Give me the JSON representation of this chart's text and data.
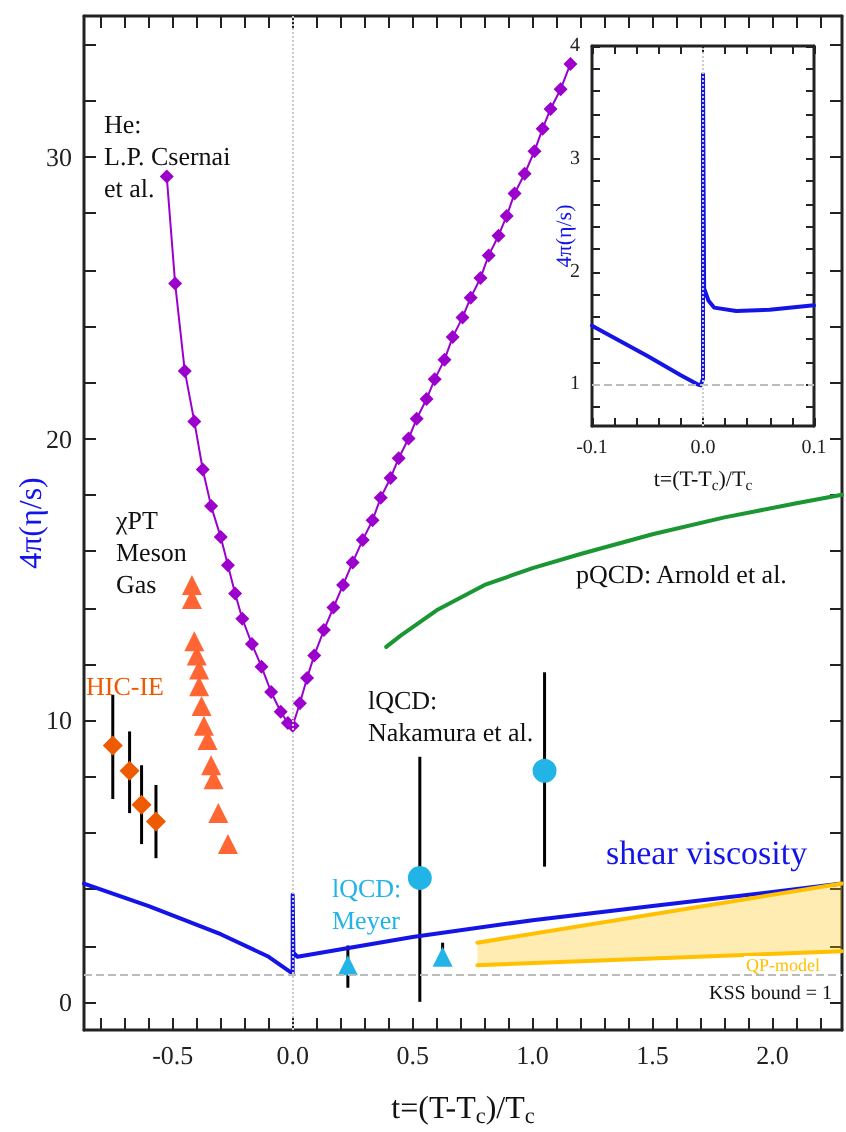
{
  "chart_data": [
    {
      "type": "line",
      "xlabel": "t=(T-T$_{c}$)/T$_{c}$",
      "ylabel": "4π(η/s)",
      "xlim": [
        -0.87,
        2.29
      ],
      "ylim": [
        -1,
        35
      ],
      "xticks": [
        {
          "value": -0.8,
          "label": null
        },
        {
          "value": -0.7,
          "label": null
        },
        {
          "value": -0.6,
          "label": null
        },
        -0.5,
        {
          "value": -0.4,
          "label": null
        },
        {
          "value": -0.3,
          "label": null
        },
        {
          "value": -0.2,
          "label": null
        },
        {
          "value": -0.1,
          "label": null
        },
        {
          "value": 0,
          "label": "0.0"
        },
        {
          "value": 0.1,
          "label": null
        },
        {
          "value": 0.2,
          "label": null
        },
        {
          "value": 0.3,
          "label": null
        },
        {
          "value": 0.4,
          "label": null
        },
        0.5,
        {
          "value": 0.6,
          "label": null
        },
        {
          "value": 0.7,
          "label": null
        },
        {
          "value": 0.8,
          "label": null
        },
        {
          "value": 0.9,
          "label": null
        },
        {
          "value": 1,
          "label": "1.0"
        },
        {
          "value": 1.1,
          "label": null
        },
        {
          "value": 1.2,
          "label": null
        },
        {
          "value": 1.3,
          "label": null
        },
        {
          "value": 1.4,
          "label": null
        },
        1.5,
        {
          "value": 1.6,
          "label": null
        },
        {
          "value": 1.7,
          "label": null
        },
        {
          "value": 1.8,
          "label": null
        },
        {
          "value": 1.9,
          "label": null
        },
        {
          "value": 2,
          "label": "2.0"
        },
        {
          "value": 2.1,
          "label": null
        },
        {
          "value": 2.2,
          "label": null
        }
      ],
      "yticks": [
        0,
        {
          "value": 2,
          "label": null
        },
        {
          "value": 4,
          "label": null
        },
        {
          "value": 6,
          "label": null
        },
        {
          "value": 8,
          "label": null
        },
        10,
        {
          "value": 12,
          "label": null
        },
        {
          "value": 14,
          "label": null
        },
        {
          "value": 16,
          "label": null
        },
        {
          "value": 18,
          "label": null
        },
        20,
        {
          "value": 22,
          "label": null
        },
        {
          "value": 24,
          "label": null
        },
        {
          "value": 26,
          "label": null
        },
        {
          "value": 28,
          "label": null
        },
        30,
        {
          "value": 32,
          "label": null
        },
        {
          "value": 34,
          "label": null
        }
      ],
      "ref_lines": [
        {
          "axis": "y",
          "value": 1,
          "label": "KSS bound = 1",
          "color": "#bbbbbb",
          "line_style": "dashed"
        },
        {
          "axis": "x",
          "value": 0,
          "label": null,
          "color": "#cccccc",
          "line_style": "dotted"
        }
      ],
      "series": [
        {
          "name": "He:\nL.P. Csernai\net al.",
          "marker": "diamond",
          "color": "#9b00cc",
          "x": [
            -0.525,
            -0.49,
            -0.45,
            -0.41,
            -0.375,
            -0.34,
            -0.3,
            -0.27,
            -0.24,
            -0.21,
            -0.17,
            -0.13,
            -0.09,
            -0.05,
            -0.02,
            0,
            0.03,
            0.06,
            0.09,
            0.13,
            0.17,
            0.21,
            0.25,
            0.292,
            0.333,
            0.367,
            0.408,
            0.442,
            0.483,
            0.517,
            0.558,
            0.592,
            0.633,
            0.667,
            0.708,
            0.742,
            0.783,
            0.817,
            0.858,
            0.892,
            0.925,
            0.967,
            1.008,
            1.042,
            1.075,
            1.117,
            1.158
          ],
          "values": [
            29.3,
            25.5,
            22.4,
            20.6,
            18.9,
            17.6,
            16.5,
            15.5,
            14.5,
            13.6,
            12.7,
            11.9,
            11,
            10.3,
            9.9,
            9.8,
            10.6,
            11.5,
            12.3,
            13.2,
            14,
            14.8,
            15.6,
            16.4,
            17.1,
            17.9,
            18.6,
            19.3,
            20,
            20.7,
            21.4,
            22.1,
            22.8,
            23.6,
            24.3,
            25,
            25.7,
            26.5,
            27.2,
            27.9,
            28.7,
            29.4,
            30.2,
            31,
            31.7,
            32.4,
            33.3
          ]
        },
        {
          "name": "χPT\nMeson\nGas",
          "type": "scatter",
          "marker": "triangle",
          "color": "#ff6633",
          "x": [
            -0.42,
            -0.42,
            -0.41,
            -0.4,
            -0.39,
            -0.39,
            -0.38,
            -0.37,
            -0.355,
            -0.34,
            -0.33,
            -0.31,
            -0.27
          ],
          "values": [
            14.8,
            14.3,
            12.8,
            12.3,
            11.8,
            11.2,
            10.5,
            9.8,
            9.3,
            8.4,
            7.9,
            6.7,
            5.6
          ]
        },
        {
          "name": "HIC-IE",
          "type": "scatter",
          "marker": "diamond",
          "color": "#ee5a00",
          "x": [
            -0.75,
            -0.68,
            -0.63,
            -0.57
          ],
          "values": [
            9.1,
            8.2,
            7,
            6.4
          ],
          "errors": [
            [
              7.2,
              10.9
            ],
            [
              6.7,
              9.6
            ],
            [
              5.6,
              8.4
            ],
            [
              5.1,
              7.7
            ]
          ]
        },
        {
          "name": "pQCD: Arnold et al.",
          "marker": "none",
          "color": "#1a9632",
          "x": [
            0.39,
            0.45,
            0.6,
            0.8,
            1,
            1.2,
            1.5,
            1.8,
            2.1,
            2.29
          ],
          "values": [
            12.6,
            13,
            13.9,
            14.8,
            15.4,
            15.9,
            16.6,
            17.2,
            17.7,
            18
          ]
        },
        {
          "name": "shear viscosity",
          "marker": "none",
          "color": "#1414e6",
          "x": [
            -0.87,
            -0.6,
            -0.3,
            -0.1,
            0,
            0,
            0.003,
            0.02,
            0.5,
            1,
            1.5,
            2,
            2.29
          ],
          "values": [
            4.2,
            3.4,
            2.4,
            1.6,
            1,
            3.8,
            1.75,
            1.6,
            2.3,
            2.9,
            3.4,
            3.9,
            4.2
          ]
        },
        {
          "name": "QP-model",
          "marker": "none",
          "color": "#ffc000",
          "x": [
            0.77,
            2.29
          ],
          "values": [
            2.1,
            4.2
          ],
          "lower": [
            1.3,
            1.8
          ],
          "upper": [
            2.1,
            4.2
          ]
        },
        {
          "marker": "none",
          "color": "#ffc000",
          "x": [
            0.77,
            2.29
          ],
          "values": [
            1.3,
            1.8
          ]
        },
        {
          "name": "lQCD:\nNakamura et al.",
          "type": "scatter",
          "marker": "circle",
          "color": "#22b4e6",
          "x": [
            0.53,
            1.05
          ],
          "values": [
            4.4,
            8.2
          ],
          "errors": [
            [
              0,
              8.7
            ],
            [
              4.8,
              11.7
            ]
          ]
        },
        {
          "name": "lQCD:\nMeyer",
          "type": "scatter",
          "marker": "triangle",
          "color": "#22b4e6",
          "x": [
            0.23,
            0.625
          ],
          "values": [
            1.3,
            1.6
          ],
          "errors": [
            [
              0.5,
              2
            ],
            [
              1.3,
              2.1
            ]
          ]
        }
      ]
    },
    {
      "type": "line",
      "xlabel": "t=(T-T$_{c}$)/T$_{c}$",
      "ylabel": "4π(η/s)",
      "xlim": [
        -0.1,
        0.1
      ],
      "ylim": [
        0.63,
        4
      ],
      "xticks": [
        -0.1,
        {
          "value": -0.08,
          "label": null
        },
        {
          "value": -0.06,
          "label": null
        },
        {
          "value": -0.04,
          "label": null
        },
        {
          "value": -0.02,
          "label": null
        },
        {
          "value": 0,
          "label": "0.0"
        },
        {
          "value": 0.02,
          "label": null
        },
        {
          "value": 0.04,
          "label": null
        },
        {
          "value": 0.06,
          "label": null
        },
        {
          "value": 0.08,
          "label": null
        },
        0.1
      ],
      "yticks": [
        {
          "value": 0.8,
          "label": null
        },
        1,
        {
          "value": 1.2,
          "label": null
        },
        {
          "value": 1.4,
          "label": null
        },
        {
          "value": 1.6,
          "label": null
        },
        {
          "value": 1.8,
          "label": null
        },
        2,
        {
          "value": 2.2,
          "label": null
        },
        {
          "value": 2.4,
          "label": null
        },
        {
          "value": 2.6,
          "label": null
        },
        {
          "value": 2.8,
          "label": null
        },
        3,
        {
          "value": 3.2,
          "label": null
        },
        {
          "value": 3.4,
          "label": null
        },
        {
          "value": 3.6,
          "label": null
        },
        {
          "value": 3.8,
          "label": null
        },
        4
      ],
      "ref_lines": [
        {
          "axis": "y",
          "value": 1,
          "label": null,
          "color": "#bbbbbb",
          "line_style": "dashed"
        },
        {
          "axis": "x",
          "value": 0,
          "label": null,
          "color": "#cccccc",
          "line_style": "dotted"
        }
      ],
      "series": [
        {
          "marker": "none",
          "color": "#1414e6",
          "x": [
            -0.1,
            -0.05,
            -0.02,
            -0.005,
            -0.002,
            0,
            0,
            0.001,
            0.005,
            0.01,
            0.03,
            0.06,
            0.1
          ],
          "values": [
            1.52,
            1.25,
            1.08,
            1,
            0.99,
            1.05,
            3.75,
            1.85,
            1.74,
            1.68,
            1.65,
            1.66,
            1.7
          ]
        }
      ]
    }
  ]
}
